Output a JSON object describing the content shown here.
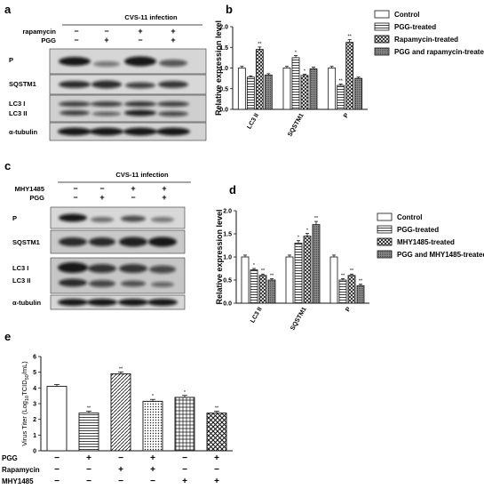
{
  "panels": {
    "a": "a",
    "b": "b",
    "c": "c",
    "d": "d",
    "e": "e"
  },
  "blot_a": {
    "title": "CVS-11 infection",
    "conditions": [
      {
        "label": "rapamycin",
        "values": [
          "−",
          "−",
          "+",
          "+"
        ]
      },
      {
        "label": "PGG",
        "values": [
          "−",
          "+",
          "−",
          "+"
        ]
      }
    ],
    "band_labels": [
      "P",
      "SQSTM1",
      "LC3 I",
      "LC3 II",
      "α-tubulin"
    ]
  },
  "blot_c": {
    "title": "CVS-11 infection",
    "conditions": [
      {
        "label": "MHY1485",
        "values": [
          "−",
          "−",
          "+",
          "+"
        ]
      },
      {
        "label": "PGG",
        "values": [
          "−",
          "+",
          "−",
          "+"
        ]
      }
    ],
    "band_labels": [
      "P",
      "SQSTM1",
      "LC3 I",
      "LC3 II",
      "α-tubulin"
    ]
  },
  "chart_data": [
    {
      "panel": "b",
      "type": "bar",
      "ylabel": "Relative expression level",
      "ylim": [
        0,
        2.0
      ],
      "yticks": [
        "0.0",
        "0.5",
        "1.0",
        "1.5",
        "2.0"
      ],
      "categories": [
        "LC3 II",
        "SQSTM1",
        "P"
      ],
      "series": [
        {
          "name": "Control",
          "values": [
            1.0,
            1.0,
            1.0
          ],
          "sig": [
            "",
            "",
            ""
          ]
        },
        {
          "name": "PGG-treated",
          "values": [
            0.78,
            1.25,
            0.58
          ],
          "sig": [
            "",
            "*",
            "**"
          ]
        },
        {
          "name": "Rapamycin-treated",
          "values": [
            1.45,
            0.82,
            1.62
          ],
          "sig": [
            "**",
            "*",
            "**"
          ]
        },
        {
          "name": "PGG and rapamycin-treated",
          "values": [
            0.83,
            0.98,
            0.75
          ],
          "sig": [
            "",
            "",
            ""
          ]
        }
      ],
      "legend": "right"
    },
    {
      "panel": "d",
      "type": "bar",
      "ylabel": "Relative expression level",
      "ylim": [
        0,
        2.0
      ],
      "yticks": [
        "0.0",
        "0.5",
        "1.0",
        "1.5",
        "2.0"
      ],
      "categories": [
        "LC3 II",
        "SQSTM1",
        "P"
      ],
      "series": [
        {
          "name": "Control",
          "values": [
            1.0,
            1.0,
            1.0
          ],
          "sig": [
            "",
            "",
            ""
          ]
        },
        {
          "name": "PGG-treated",
          "values": [
            0.72,
            1.3,
            0.5
          ],
          "sig": [
            "*",
            "*",
            "**"
          ]
        },
        {
          "name": "MHY1485-treated",
          "values": [
            0.6,
            1.45,
            0.6
          ],
          "sig": [
            "**",
            "*",
            "**"
          ]
        },
        {
          "name": "PGG and MHY1485-treated",
          "values": [
            0.5,
            1.7,
            0.38
          ],
          "sig": [
            "**",
            "**",
            "**"
          ]
        }
      ],
      "legend": "right"
    },
    {
      "panel": "e",
      "type": "bar",
      "ylabel_main": "Virus Titer (Log",
      "ylabel_sub1": "10",
      "ylabel_mid": "TCID",
      "ylabel_sub2": "50",
      "ylabel_end": "/mL)",
      "ylim": [
        0,
        6
      ],
      "yticks": [
        "0",
        "1",
        "2",
        "3",
        "4",
        "5",
        "6"
      ],
      "values": [
        4.1,
        2.4,
        4.9,
        3.15,
        3.4,
        2.4
      ],
      "sig": [
        "",
        "**",
        "**",
        "*",
        "*",
        "**"
      ],
      "conditions": [
        {
          "label": "PGG",
          "values": [
            "−",
            "+",
            "−",
            "+",
            "−",
            "+"
          ]
        },
        {
          "label": "Rapamycin",
          "values": [
            "−",
            "−",
            "+",
            "+",
            "−",
            "−"
          ]
        },
        {
          "label": "MHY1485",
          "values": [
            "−",
            "−",
            "−",
            "−",
            "+",
            "+"
          ]
        }
      ]
    }
  ]
}
